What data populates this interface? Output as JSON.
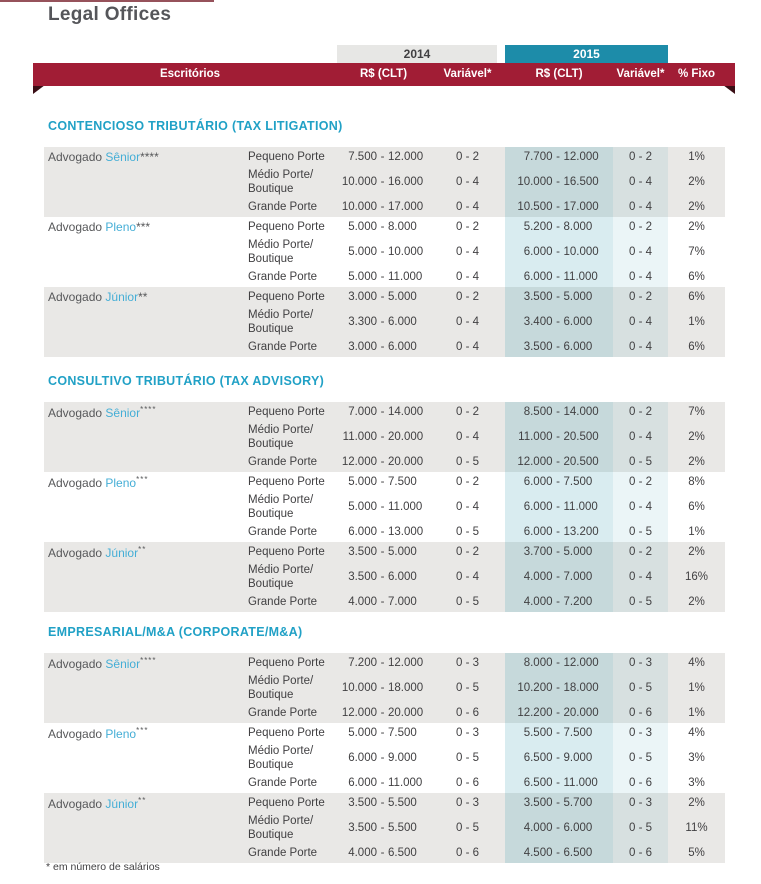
{
  "page": {
    "title": "Legal Offices",
    "footnote": "* em número de salários"
  },
  "colors": {
    "accent_red": "#a11d35",
    "accent_teal": "#1d8ca9",
    "section_heading_blue": "#21a1c6",
    "role_name_blue": "#45aed6",
    "row_shade_gray": "#e9e8e6"
  },
  "table_header": {
    "year_2014": "2014",
    "year_2015": "2015",
    "escritorios": "Escritórios",
    "col_rs_2014": "R$ (CLT)",
    "col_var_2014": "Variável*",
    "col_rs_2015": "R$ (CLT)",
    "col_var_2015": "Variável*",
    "col_fixo": "% Fixo"
  },
  "sections": [
    {
      "title": "CONTENCIOSO TRIBUTÁRIO (TAX LITIGATION)",
      "groups": [
        {
          "prefix": "Advogado",
          "role": "Sênior",
          "asterisks": "****",
          "rows": [
            {
              "porte": "Pequeno Porte",
              "rs_2014": "7.500 - 12.000",
              "var_2014": "0 - 2",
              "rs_2015": "7.700 - 12.000",
              "var_2015": "0 - 2",
              "fixo": "1%"
            },
            {
              "porte": "Médio Porte/Boutique",
              "rs_2014": "10.000 - 16.000",
              "var_2014": "0 - 4",
              "rs_2015": "10.000 - 16.500",
              "var_2015": "0 - 4",
              "fixo": "2%"
            },
            {
              "porte": "Grande Porte",
              "rs_2014": "10.000 - 17.000",
              "var_2014": "0 - 4",
              "rs_2015": "10.500 - 17.000",
              "var_2015": "0 - 4",
              "fixo": "2%"
            }
          ]
        },
        {
          "prefix": "Advogado",
          "role": "Pleno",
          "asterisks": "***",
          "rows": [
            {
              "porte": "Pequeno Porte",
              "rs_2014": "5.000 - 8.000",
              "var_2014": "0 - 2",
              "rs_2015": "5.200 - 8.000",
              "var_2015": "0 - 2",
              "fixo": "2%"
            },
            {
              "porte": "Médio Porte/Boutique",
              "rs_2014": "5.000 - 10.000",
              "var_2014": "0 - 4",
              "rs_2015": "6.000 - 10.000",
              "var_2015": "0 - 4",
              "fixo": "7%"
            },
            {
              "porte": "Grande Porte",
              "rs_2014": "5.000 - 11.000",
              "var_2014": "0 - 4",
              "rs_2015": "6.000 - 11.000",
              "var_2015": "0 - 4",
              "fixo": "6%"
            }
          ]
        },
        {
          "prefix": "Advogado",
          "role": "Júnior",
          "asterisks": "**",
          "rows": [
            {
              "porte": "Pequeno Porte",
              "rs_2014": "3.000 - 5.000",
              "var_2014": "0 - 2",
              "rs_2015": "3.500 - 5.000",
              "var_2015": "0 - 2",
              "fixo": "6%"
            },
            {
              "porte": "Médio Porte/Boutique",
              "rs_2014": "3.300 - 6.000",
              "var_2014": "0 - 4",
              "rs_2015": "3.400 - 6.000",
              "var_2015": "0 - 4",
              "fixo": "1%"
            },
            {
              "porte": "Grande Porte",
              "rs_2014": "3.000 - 6.000",
              "var_2014": "0 - 4",
              "rs_2015": "3.500 - 6.000",
              "var_2015": "0 - 4",
              "fixo": "6%"
            }
          ]
        }
      ]
    },
    {
      "title": "CONSULTIVO TRIBUTÁRIO (TAX ADVISORY)",
      "groups": [
        {
          "prefix": "Advogado",
          "role": "Sênior",
          "asterisks": "****",
          "rows": [
            {
              "porte": "Pequeno Porte",
              "rs_2014": "7.000 - 14.000",
              "var_2014": "0 - 2",
              "rs_2015": "8.500 - 14.000",
              "var_2015": "0 - 2",
              "fixo": "7%"
            },
            {
              "porte": "Médio Porte/Boutique",
              "rs_2014": "11.000 - 20.000",
              "var_2014": "0 - 4",
              "rs_2015": "11.000 - 20.500",
              "var_2015": "0 - 4",
              "fixo": "2%"
            },
            {
              "porte": "Grande Porte",
              "rs_2014": "12.000 - 20.000",
              "var_2014": "0 - 5",
              "rs_2015": "12.000 - 20.500",
              "var_2015": "0 - 5",
              "fixo": "2%"
            }
          ]
        },
        {
          "prefix": "Advogado",
          "role": "Pleno",
          "asterisks": "***",
          "rows": [
            {
              "porte": "Pequeno Porte",
              "rs_2014": "5.000 - 7.500",
              "var_2014": "0 - 2",
              "rs_2015": "6.000 - 7.500",
              "var_2015": "0 - 2",
              "fixo": "8%"
            },
            {
              "porte": "Médio Porte/Boutique",
              "rs_2014": "5.000 - 11.000",
              "var_2014": "0 - 4",
              "rs_2015": "6.000 - 11.000",
              "var_2015": "0 - 4",
              "fixo": "6%"
            },
            {
              "porte": "Grande Porte",
              "rs_2014": "6.000 - 13.000",
              "var_2014": "0 - 5",
              "rs_2015": "6.000 - 13.200",
              "var_2015": "0 - 5",
              "fixo": "1%"
            }
          ]
        },
        {
          "prefix": "Advogado",
          "role": "Júnior",
          "asterisks": "**",
          "rows": [
            {
              "porte": "Pequeno Porte",
              "rs_2014": "3.500 - 5.000",
              "var_2014": "0 - 2",
              "rs_2015": "3.700 - 5.000",
              "var_2015": "0 - 2",
              "fixo": "2%"
            },
            {
              "porte": "Médio Porte/Boutique",
              "rs_2014": "3.500 - 6.000",
              "var_2014": "0 - 4",
              "rs_2015": "4.000 - 7.000",
              "var_2015": "0 - 4",
              "fixo": "16%"
            },
            {
              "porte": "Grande Porte",
              "rs_2014": "4.000 - 7.000",
              "var_2014": "0 - 5",
              "rs_2015": "4.000 - 7.200",
              "var_2015": "0 - 5",
              "fixo": "2%"
            }
          ]
        }
      ]
    },
    {
      "title": "EMPRESARIAL/M&A (CORPORATE/M&A)",
      "groups": [
        {
          "prefix": "Advogado",
          "role": "Sênior",
          "asterisks": "****",
          "rows": [
            {
              "porte": "Pequeno Porte",
              "rs_2014": "7.200 - 12.000",
              "var_2014": "0 - 3",
              "rs_2015": "8.000 - 12.000",
              "var_2015": "0 - 3",
              "fixo": "4%"
            },
            {
              "porte": "Médio Porte/Boutique",
              "rs_2014": "10.000 - 18.000",
              "var_2014": "0 - 5",
              "rs_2015": "10.200 - 18.000",
              "var_2015": "0 - 5",
              "fixo": "1%"
            },
            {
              "porte": "Grande Porte",
              "rs_2014": "12.000 - 20.000",
              "var_2014": "0 - 6",
              "rs_2015": "12.200 - 20.000",
              "var_2015": "0 - 6",
              "fixo": "1%"
            }
          ]
        },
        {
          "prefix": "Advogado",
          "role": "Pleno",
          "asterisks": "***",
          "rows": [
            {
              "porte": "Pequeno Porte",
              "rs_2014": "5.000 - 7.500",
              "var_2014": "0 - 3",
              "rs_2015": "5.500 - 7.500",
              "var_2015": "0 - 3",
              "fixo": "4%"
            },
            {
              "porte": "Médio Porte/Boutique",
              "rs_2014": "6.000 - 9.000",
              "var_2014": "0 - 5",
              "rs_2015": "6.500 - 9.000",
              "var_2015": "0 - 5",
              "fixo": "3%"
            },
            {
              "porte": "Grande Porte",
              "rs_2014": "6.000 - 11.000",
              "var_2014": "0 - 6",
              "rs_2015": "6.500 - 11.000",
              "var_2015": "0 - 6",
              "fixo": "3%"
            }
          ]
        },
        {
          "prefix": "Advogado",
          "role": "Júnior",
          "asterisks": "**",
          "rows": [
            {
              "porte": "Pequeno Porte",
              "rs_2014": "3.500 - 5.500",
              "var_2014": "0 - 3",
              "rs_2015": "3.500 - 5.700",
              "var_2015": "0 - 3",
              "fixo": "2%"
            },
            {
              "porte": "Médio Porte/Boutique",
              "rs_2014": "3.500 - 5.500",
              "var_2014": "0 - 5",
              "rs_2015": "4.000 - 6.000",
              "var_2015": "0 - 5",
              "fixo": "11%"
            },
            {
              "porte": "Grande Porte",
              "rs_2014": "4.000 - 6.500",
              "var_2014": "0 - 6",
              "rs_2015": "4.500 - 6.500",
              "var_2015": "0 - 6",
              "fixo": "5%"
            }
          ]
        }
      ]
    }
  ]
}
